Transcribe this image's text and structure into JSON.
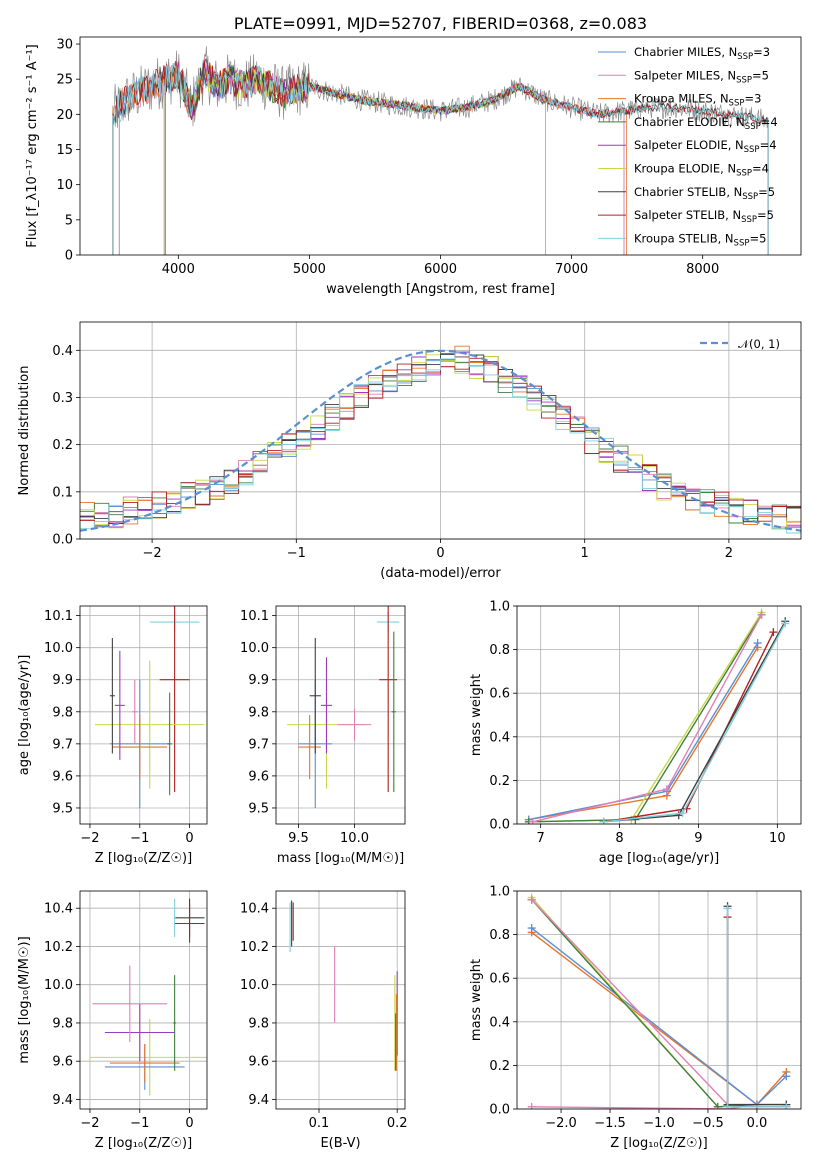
{
  "chart_data": [
    {
      "id": "spectrum",
      "type": "line",
      "title": "PLATE=0991, MJD=52707, FIBERID=0368, z=0.083",
      "xlabel": "wavelength [Angstrom, rest frame]",
      "ylabel": "Flux [f_λ10⁻¹⁷ erg cm⁻² s⁻¹ A⁻¹]",
      "xlim": [
        3250,
        8750
      ],
      "ylim": [
        0,
        31
      ],
      "xticks": [
        4000,
        5000,
        6000,
        7000,
        8000
      ],
      "yticks": [
        0,
        5,
        10,
        15,
        20,
        25,
        30
      ],
      "grid": false,
      "legend_position": "top-right",
      "data_line": {
        "x": [
          3500,
          3600,
          3700,
          3800,
          3900,
          4000,
          4100,
          4200,
          4300,
          4400,
          4500,
          4600,
          4700,
          4800,
          4900,
          5000,
          5200,
          5400,
          5600,
          5800,
          6000,
          6200,
          6400,
          6600,
          6700,
          6800,
          7000,
          7200,
          7400,
          7600,
          7800,
          8000,
          8200,
          8400,
          8500
        ],
        "y": [
          20,
          22,
          23,
          24,
          25,
          25.5,
          21,
          26,
          24,
          25,
          24,
          25,
          24,
          23,
          23.5,
          24,
          23,
          22,
          21.5,
          21,
          20.5,
          21,
          22,
          24,
          23,
          22,
          21,
          20,
          20.5,
          21,
          21,
          20.5,
          20,
          19.5,
          19
        ]
      },
      "series": [
        {
          "name": "Chabrier MILES, N_SSP=3",
          "label_main": "Chabrier MILES, N",
          "label_sub": "SSP",
          "label_tail": "=3",
          "color": "#5a8fd6",
          "x_range": [
            3550,
            7400
          ]
        },
        {
          "name": "Salpeter MILES, N_SSP=5",
          "label_main": "Salpeter MILES, N",
          "label_sub": "SSP",
          "label_tail": "=5",
          "color": "#e17fb7",
          "x_range": [
            3550,
            7400
          ]
        },
        {
          "name": "Kroupa MILES, N_SSP=3",
          "label_main": "Kroupa MILES, N",
          "label_sub": "SSP",
          "label_tail": "=3",
          "color": "#e6762a",
          "x_range": [
            3500,
            7420
          ]
        },
        {
          "name": "Chabrier ELODIE, N_SSP=4",
          "label_main": "Chabrier ELODIE, N",
          "label_sub": "SSP",
          "label_tail": "=4",
          "color": "#3f7f3f",
          "x_range": [
            3900,
            6800
          ]
        },
        {
          "name": "Salpeter ELODIE, N_SSP=4",
          "label_main": "Salpeter ELODIE, N",
          "label_sub": "SSP",
          "label_tail": "=4",
          "color": "#9b3bc2",
          "x_range": [
            3900,
            6800
          ]
        },
        {
          "name": "Kroupa ELODIE, N_SSP=4",
          "label_main": "Kroupa ELODIE, N",
          "label_sub": "SSP",
          "label_tail": "=4",
          "color": "#c8d84a",
          "x_range": [
            3890,
            6800
          ]
        },
        {
          "name": "Chabrier STELIB, N_SSP=5",
          "label_main": "Chabrier STELIB, N",
          "label_sub": "SSP",
          "label_tail": "=5",
          "color": "#404040",
          "x_range": [
            3500,
            8500
          ]
        },
        {
          "name": "Salpeter STELIB, N_SSP=5",
          "label_main": "Salpeter STELIB, N",
          "label_sub": "SSP",
          "label_tail": "=5",
          "color": "#b02020",
          "x_range": [
            3500,
            8500
          ]
        },
        {
          "name": "Kroupa STELIB, N_SSP=5",
          "label_main": "Kroupa STELIB, N",
          "label_sub": "SSP",
          "label_tail": "=5",
          "color": "#7fd0dc",
          "x_range": [
            3500,
            8500
          ]
        }
      ]
    },
    {
      "id": "residuals",
      "type": "histogram",
      "xlabel": "(data-model)/error",
      "ylabel": "Normed distribution",
      "xlim": [
        -2.5,
        2.5
      ],
      "ylim": [
        0,
        0.46
      ],
      "xticks": [
        -2,
        -1,
        0,
        1,
        2
      ],
      "yticks": [
        0.0,
        0.1,
        0.2,
        0.3,
        0.4
      ],
      "grid": true,
      "bin_width": 0.1,
      "reference_curve": {
        "name": "𝒩(0, 1)",
        "mean": 0,
        "std": 1,
        "color": "#5a8fd6"
      },
      "legend_position": "top-right",
      "envelope": [
        0.05,
        0.05,
        0.05,
        0.06,
        0.06,
        0.07,
        0.08,
        0.09,
        0.1,
        0.11,
        0.12,
        0.14,
        0.16,
        0.18,
        0.2,
        0.22,
        0.24,
        0.26,
        0.28,
        0.3,
        0.32,
        0.33,
        0.35,
        0.36,
        0.37,
        0.38,
        0.38,
        0.37,
        0.36,
        0.34,
        0.32,
        0.3,
        0.28,
        0.26,
        0.24,
        0.21,
        0.19,
        0.17,
        0.15,
        0.13,
        0.11,
        0.1,
        0.09,
        0.08,
        0.07,
        0.06,
        0.06,
        0.05,
        0.05,
        0.04
      ]
    },
    {
      "id": "age-vs-Z",
      "type": "errorbar",
      "xlabel": "Z [log₁₀(Z/Z☉)]",
      "ylabel": "age  [log₁₀(age/yr)]",
      "xlim": [
        -2.2,
        0.35
      ],
      "ylim": [
        9.45,
        10.13
      ],
      "xticks": [
        -2,
        -1,
        0
      ],
      "yticks": [
        9.5,
        9.6,
        9.7,
        9.8,
        9.9,
        10.0,
        10.1
      ],
      "grid": true,
      "points": [
        {
          "x": -0.3,
          "y": 10.08,
          "xerr": 0.5,
          "yerr": 0.03,
          "color": "#7fd0dc"
        },
        {
          "x": -0.3,
          "y": 9.9,
          "xerr": 0.3,
          "yerr": 0.35,
          "color": "#b02020"
        },
        {
          "x": -0.8,
          "y": 9.76,
          "xerr": 1.1,
          "yerr": 0.2,
          "color": "#c8d84a"
        },
        {
          "x": -1.0,
          "y": 9.7,
          "xerr": 0.6,
          "yerr": 0.2,
          "color": "#5a8fd6"
        },
        {
          "x": -1.0,
          "y": 9.69,
          "xerr": 0.55,
          "yerr": 0.1,
          "color": "#e6762a"
        },
        {
          "x": -1.4,
          "y": 9.82,
          "xerr": 0.1,
          "yerr": 0.17,
          "color": "#9b3bc2"
        },
        {
          "x": -1.1,
          "y": 9.8,
          "xerr": 0.05,
          "yerr": 0.1,
          "color": "#e17fb7"
        },
        {
          "x": -1.55,
          "y": 9.85,
          "xerr": 0.05,
          "yerr": 0.18,
          "color": "#404040"
        },
        {
          "x": -0.4,
          "y": 9.7,
          "xerr": 0.05,
          "yerr": 0.16,
          "color": "#3f7f3f"
        }
      ]
    },
    {
      "id": "age-vs-mass",
      "type": "errorbar",
      "xlabel": "mass [log₁₀(M/M☉)]",
      "ylabel": "",
      "xlim": [
        9.3,
        10.45
      ],
      "ylim": [
        9.45,
        10.13
      ],
      "xticks": [
        9.5,
        10.0
      ],
      "yticks": [
        9.5,
        9.6,
        9.7,
        9.8,
        9.9,
        10.0,
        10.1
      ],
      "grid": true,
      "points": [
        {
          "x": 10.3,
          "y": 10.08,
          "xerr": 0.1,
          "yerr": 0.03,
          "color": "#7fd0dc"
        },
        {
          "x": 10.3,
          "y": 9.9,
          "xerr": 0.08,
          "yerr": 0.35,
          "color": "#b02020"
        },
        {
          "x": 9.75,
          "y": 9.76,
          "xerr": 0.35,
          "yerr": 0.2,
          "color": "#c8d84a"
        },
        {
          "x": 9.65,
          "y": 9.7,
          "xerr": 0.15,
          "yerr": 0.2,
          "color": "#5a8fd6"
        },
        {
          "x": 9.6,
          "y": 9.69,
          "xerr": 0.1,
          "yerr": 0.1,
          "color": "#e6762a"
        },
        {
          "x": 9.75,
          "y": 9.82,
          "xerr": 0.05,
          "yerr": 0.15,
          "color": "#9b3bc2"
        },
        {
          "x": 10.0,
          "y": 9.76,
          "xerr": 0.15,
          "yerr": 0.05,
          "color": "#e17fb7"
        },
        {
          "x": 9.65,
          "y": 9.85,
          "xerr": 0.05,
          "yerr": 0.18,
          "color": "#404040"
        },
        {
          "x": 10.35,
          "y": 9.8,
          "xerr": 0.02,
          "yerr": 0.25,
          "color": "#3f7f3f"
        }
      ]
    },
    {
      "id": "mass-weight-vs-age",
      "type": "line",
      "xlabel": "age  [log₁₀(age/yr)]",
      "ylabel": "mass weight",
      "xlim": [
        6.7,
        10.3
      ],
      "ylim": [
        0,
        1.0
      ],
      "xticks": [
        7,
        8,
        9,
        10
      ],
      "yticks": [
        0.0,
        0.2,
        0.4,
        0.6,
        0.8,
        1.0
      ],
      "grid": true,
      "series": [
        {
          "color": "#e6762a",
          "x": [
            6.85,
            8.6,
            9.75
          ],
          "y": [
            0.02,
            0.13,
            0.81
          ]
        },
        {
          "color": "#5a8fd6",
          "x": [
            6.85,
            8.6,
            9.75
          ],
          "y": [
            0.02,
            0.15,
            0.83
          ]
        },
        {
          "color": "#c8d84a",
          "x": [
            6.85,
            8.15,
            9.8
          ],
          "y": [
            0.01,
            0.02,
            0.97
          ]
        },
        {
          "color": "#3f7f3f",
          "x": [
            6.85,
            8.2,
            9.8
          ],
          "y": [
            0.01,
            0.02,
            0.96
          ]
        },
        {
          "color": "#e17fb7",
          "x": [
            6.9,
            8.6,
            9.8
          ],
          "y": [
            0.01,
            0.16,
            0.96
          ]
        },
        {
          "color": "#b02020",
          "x": [
            7.8,
            8.85,
            9.95
          ],
          "y": [
            0.01,
            0.07,
            0.88
          ]
        },
        {
          "color": "#404040",
          "x": [
            7.8,
            8.75,
            10.1
          ],
          "y": [
            0.01,
            0.04,
            0.93
          ]
        },
        {
          "color": "#7fd0dc",
          "x": [
            7.8,
            8.8,
            10.1
          ],
          "y": [
            0.01,
            0.05,
            0.92
          ]
        }
      ]
    },
    {
      "id": "mass-vs-Z",
      "type": "errorbar",
      "xlabel": "Z [log₁₀(Z/Z☉)]",
      "ylabel": "mass [log₁₀(M/M☉)]",
      "xlim": [
        -2.2,
        0.35
      ],
      "ylim": [
        9.35,
        10.49
      ],
      "xticks": [
        -2,
        -1,
        0
      ],
      "yticks": [
        9.4,
        9.6,
        9.8,
        10.0,
        10.2,
        10.4
      ],
      "grid": true,
      "points": [
        {
          "x": 0.0,
          "y": 10.35,
          "xerr": 0.3,
          "yerr": 0.1,
          "color": "#404040"
        },
        {
          "x": 0.0,
          "y": 10.32,
          "xerr": 0.3,
          "yerr": 0.1,
          "color": "#b02020"
        },
        {
          "x": -0.8,
          "y": 9.62,
          "xerr": 1.2,
          "yerr": 0.2,
          "color": "#c8d84a"
        },
        {
          "x": -0.9,
          "y": 9.57,
          "xerr": 0.8,
          "yerr": 0.12,
          "color": "#5a8fd6"
        },
        {
          "x": -0.9,
          "y": 9.59,
          "xerr": 0.7,
          "yerr": 0.1,
          "color": "#e6762a"
        },
        {
          "x": -1.0,
          "y": 9.75,
          "xerr": 0.7,
          "yerr": 0.15,
          "color": "#9b3bc2"
        },
        {
          "x": -1.2,
          "y": 9.9,
          "xerr": 0.75,
          "yerr": 0.2,
          "color": "#e17fb7"
        },
        {
          "x": -0.3,
          "y": 9.8,
          "xerr": 0.03,
          "yerr": 0.25,
          "color": "#3f7f3f"
        },
        {
          "x": -0.3,
          "y": 10.35,
          "xerr": 0.02,
          "yerr": 0.1,
          "color": "#7fd0dc"
        }
      ]
    },
    {
      "id": "mass-vs-ebv",
      "type": "errorbar",
      "xlabel": "E(B-V)",
      "ylabel": "",
      "xlim": [
        0.045,
        0.21
      ],
      "ylim": [
        9.35,
        10.49
      ],
      "xticks": [
        0.1,
        0.2
      ],
      "yticks": [
        9.4,
        9.6,
        9.8,
        10.0,
        10.2,
        10.4
      ],
      "grid": true,
      "points": [
        {
          "x": 0.065,
          "y": 10.32,
          "xerr": 0.0,
          "yerr": 0.12,
          "color": "#404040"
        },
        {
          "x": 0.063,
          "y": 10.3,
          "xerr": 0.0,
          "yerr": 0.13,
          "color": "#7fd0dc"
        },
        {
          "x": 0.067,
          "y": 10.33,
          "xerr": 0.0,
          "yerr": 0.1,
          "color": "#b02020"
        },
        {
          "x": 0.12,
          "y": 10.0,
          "xerr": 0.0,
          "yerr": 0.2,
          "color": "#e17fb7"
        },
        {
          "x": 0.197,
          "y": 9.8,
          "xerr": 0.0,
          "yerr": 0.25,
          "color": "#c8d84a"
        },
        {
          "x": 0.2,
          "y": 9.85,
          "xerr": 0.0,
          "yerr": 0.22,
          "color": "#9b3bc2"
        },
        {
          "x": 0.199,
          "y": 9.75,
          "xerr": 0.0,
          "yerr": 0.2,
          "color": "#e6762a"
        },
        {
          "x": 0.198,
          "y": 9.7,
          "xerr": 0.0,
          "yerr": 0.15,
          "color": "#3f7f3f"
        }
      ]
    },
    {
      "id": "mass-weight-vs-Z",
      "type": "line",
      "xlabel": "Z [log₁₀(Z/Z☉)]",
      "ylabel": "mass weight",
      "xlim": [
        -2.45,
        0.45
      ],
      "ylim": [
        0,
        1.0
      ],
      "xticks": [
        -2.0,
        -1.5,
        -1.0,
        -0.5,
        0.0
      ],
      "yticks": [
        0.0,
        0.2,
        0.4,
        0.6,
        0.8,
        1.0
      ],
      "grid": true,
      "series": [
        {
          "color": "#e6762a",
          "x": [
            -2.3,
            0.0,
            0.3
          ],
          "y": [
            0.81,
            0.02,
            0.17
          ]
        },
        {
          "color": "#5a8fd6",
          "x": [
            -2.3,
            0.0,
            0.3
          ],
          "y": [
            0.83,
            0.02,
            0.15
          ]
        },
        {
          "color": "#c8d84a",
          "x": [
            -2.3,
            -0.4,
            0.0
          ],
          "y": [
            0.97,
            0.01,
            0.02
          ]
        },
        {
          "color": "#3f7f3f",
          "x": [
            -2.3,
            -0.4,
            0.0
          ],
          "y": [
            0.96,
            0.01,
            0.02
          ]
        },
        {
          "color": "#e17fb7",
          "x": [
            -2.3,
            -0.3,
            0.0,
            0.3
          ],
          "y": [
            0.01,
            0.0,
            0.02,
            0.02
          ]
        },
        {
          "color": "#e17fb7",
          "x": [
            -2.3,
            -0.3
          ],
          "y": [
            0.96,
            0.02
          ]
        },
        {
          "color": "#b02020",
          "x": [
            -0.3,
            -0.3,
            0.3
          ],
          "y": [
            0.88,
            0.01,
            0.01
          ]
        },
        {
          "color": "#404040",
          "x": [
            -0.3,
            -0.3,
            0.3
          ],
          "y": [
            0.93,
            0.02,
            0.02
          ]
        },
        {
          "color": "#7fd0dc",
          "x": [
            -0.3,
            -0.3,
            0.3
          ],
          "y": [
            0.92,
            0.01,
            0.01
          ]
        }
      ]
    }
  ]
}
